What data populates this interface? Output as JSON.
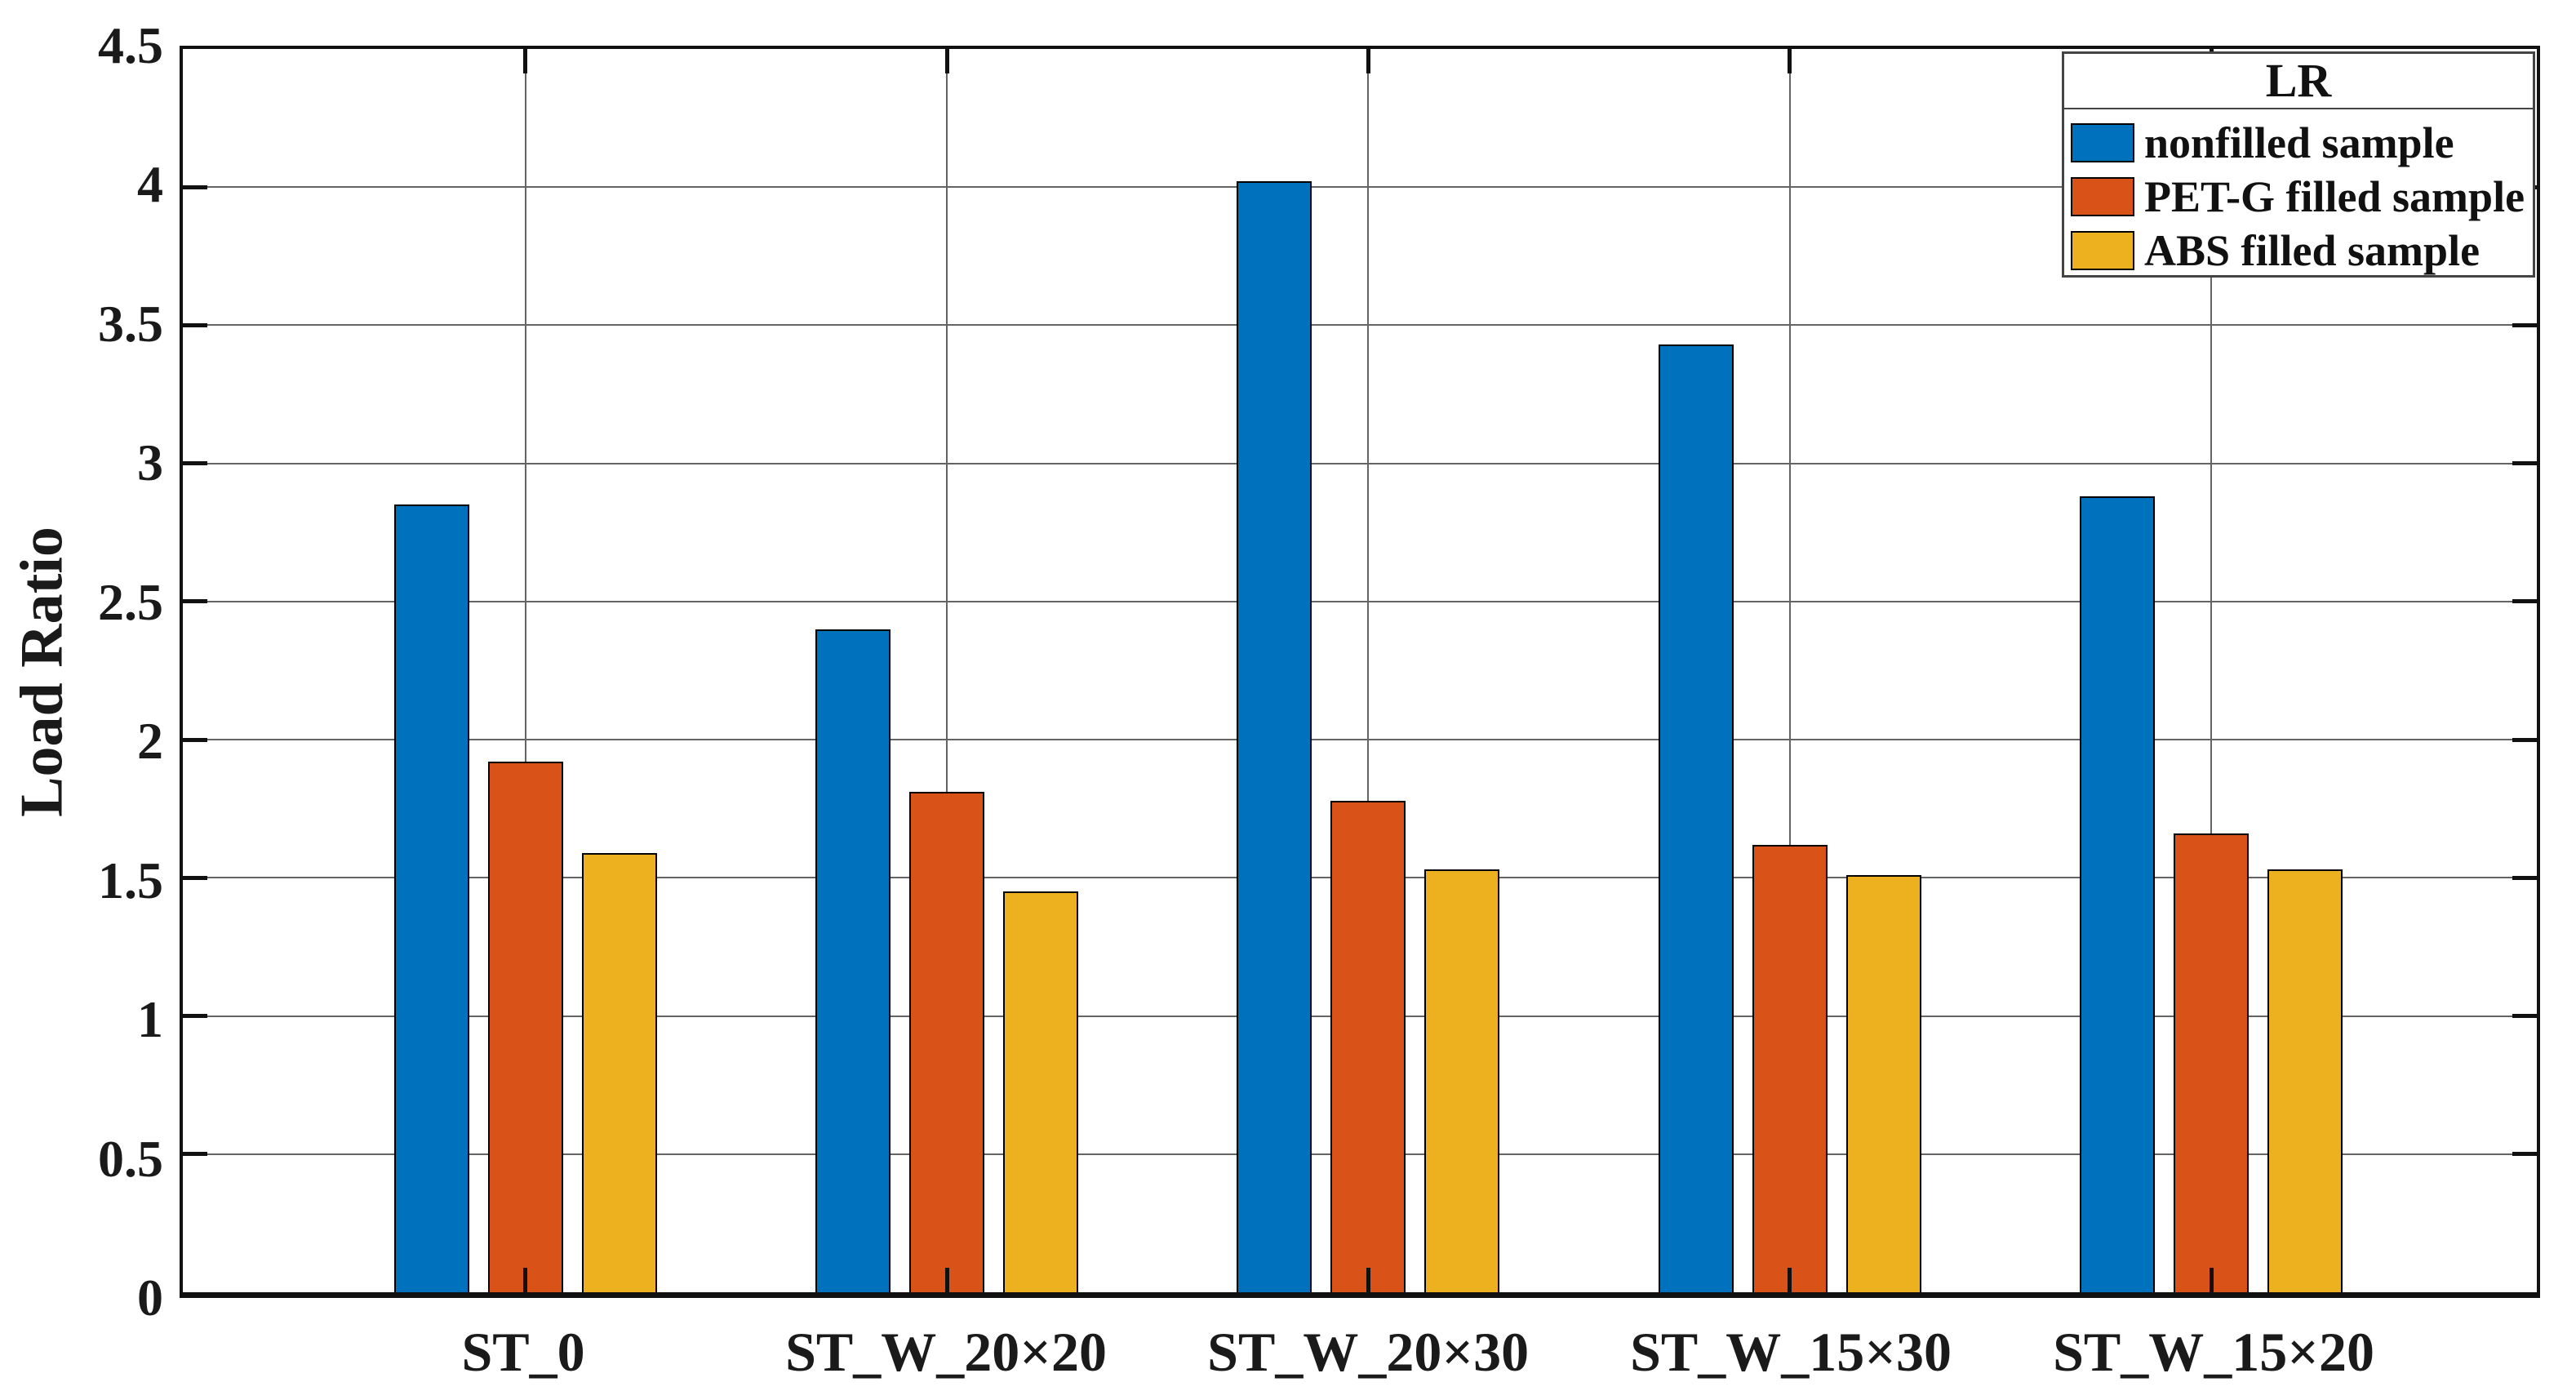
{
  "figure": {
    "background": "#ffffff"
  },
  "colors": {
    "grid": "#646464",
    "spine": "#111111",
    "bar_edge": "#000000",
    "text": "#1a1a1a"
  },
  "chart_data": {
    "type": "bar",
    "title": "",
    "xlabel": "",
    "ylabel": "Load Ratio",
    "ylim": [
      0,
      4.5
    ],
    "ytick_values": [
      0,
      0.5,
      1,
      1.5,
      2,
      2.5,
      3,
      3.5,
      4,
      4.5
    ],
    "ytick_labels": [
      "0",
      "0.5",
      "1",
      "1.5",
      "2",
      "2.5",
      "3",
      "3.5",
      "4",
      "4.5"
    ],
    "grid": true,
    "categories": [
      "ST_0",
      "ST_W_20×20",
      "ST_W_20×30",
      "ST_W_15×30",
      "ST_W_15×20"
    ],
    "series": [
      {
        "name": "nonfilled sample",
        "color": "#0072BD",
        "values": [
          2.85,
          2.4,
          4.02,
          3.43,
          2.88
        ]
      },
      {
        "name": "PET-G filled sample",
        "color": "#D95319",
        "values": [
          1.92,
          1.81,
          1.78,
          1.62,
          1.66
        ]
      },
      {
        "name": "ABS filled sample",
        "color": "#EDB120",
        "values": [
          1.59,
          1.45,
          1.53,
          1.51,
          1.53
        ]
      }
    ],
    "legend": {
      "title": "LR",
      "position": "top-right"
    }
  }
}
